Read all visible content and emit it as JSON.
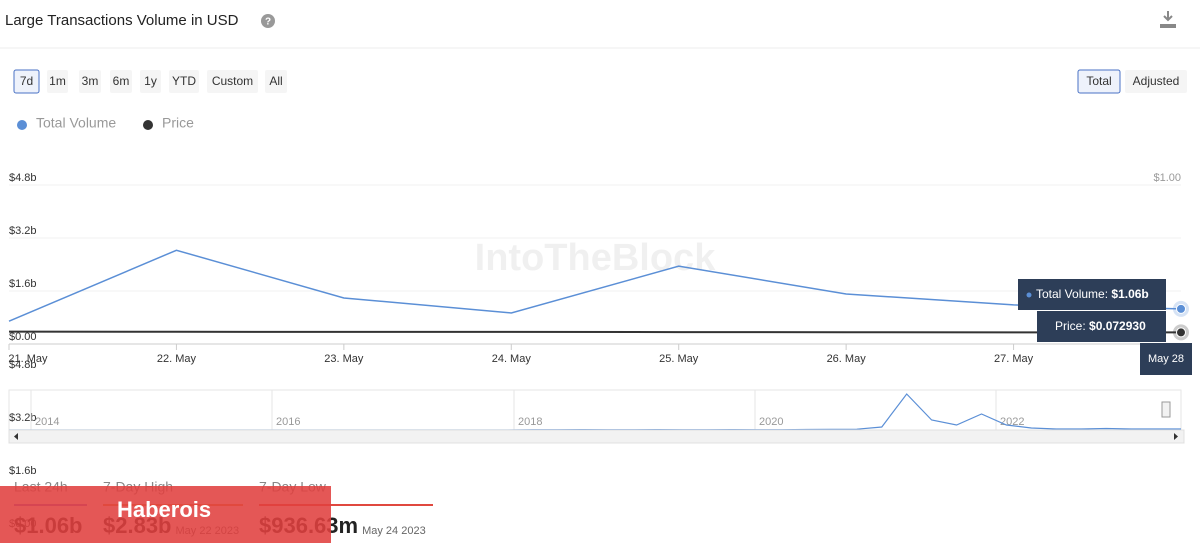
{
  "header": {
    "title": "Large Transactions Volume in USD"
  },
  "range_buttons": [
    "7d",
    "1m",
    "3m",
    "6m",
    "1y",
    "YTD",
    "Custom",
    "All"
  ],
  "mode_buttons": [
    "Total",
    "Adjusted"
  ],
  "chart_data": {
    "type": "line",
    "categories": [
      "21. May",
      "22. May",
      "23. May",
      "24. May",
      "25. May",
      "26. May",
      "27. May",
      null
    ],
    "series": [
      {
        "name": "Total Volume",
        "color": "#5b8fd6",
        "values": [
          0.69,
          2.83,
          1.39,
          0.937,
          2.35,
          1.51,
          1.18,
          1.06
        ]
      },
      {
        "name": "Price",
        "color": "#333333",
        "axis": "y2",
        "values": [
          0.078,
          0.077,
          0.076,
          0.076,
          0.075,
          0.074,
          0.073,
          0.07293
        ]
      }
    ],
    "ylim": [
      0,
      4.8
    ],
    "yticks": [
      {
        "value": 0,
        "label": "$0.00"
      },
      {
        "value": 1.6,
        "label": "$1.6b"
      },
      {
        "value": 3.2,
        "label": "$3.2b"
      },
      {
        "value": 4.8,
        "label": "$4.8b"
      }
    ],
    "y2lim": [
      0,
      1
    ],
    "y2ticks": [
      {
        "value": 1,
        "label": "$1.00"
      }
    ],
    "grid": true,
    "watermark": "IntoTheBlock",
    "tooltip": {
      "date": "May 28",
      "entries": [
        {
          "label": "Total Volume:",
          "value": "$1.06b"
        },
        {
          "label": "Price:",
          "value": "$0.072930"
        }
      ]
    }
  },
  "navigator": {
    "x_labels": [
      "2014",
      "2016",
      "2018",
      "2020",
      "2022"
    ],
    "ylim": [
      0,
      40
    ],
    "values": [
      0,
      0,
      0,
      0,
      0,
      0,
      0,
      0,
      0,
      0,
      0,
      0,
      0,
      0,
      0,
      0,
      0,
      0,
      0,
      0,
      0,
      0.3,
      0.3,
      0.4,
      0.3,
      0.3,
      0.4,
      0.3,
      0.3,
      0.4,
      0.3,
      0.3,
      0.5,
      0.6,
      0.8,
      3,
      36,
      10,
      5,
      16,
      5,
      2,
      1,
      1,
      1.5,
      1,
      1,
      1
    ]
  },
  "stats": [
    {
      "label": "Last 24h",
      "value": "$1.06b"
    },
    {
      "label": "7-Day High",
      "value": "$2.83b",
      "date": "May 22 2023"
    },
    {
      "label": "7-Day Low",
      "value": "$936.63m",
      "date": "May 24 2023"
    }
  ],
  "banner": "Haberois"
}
